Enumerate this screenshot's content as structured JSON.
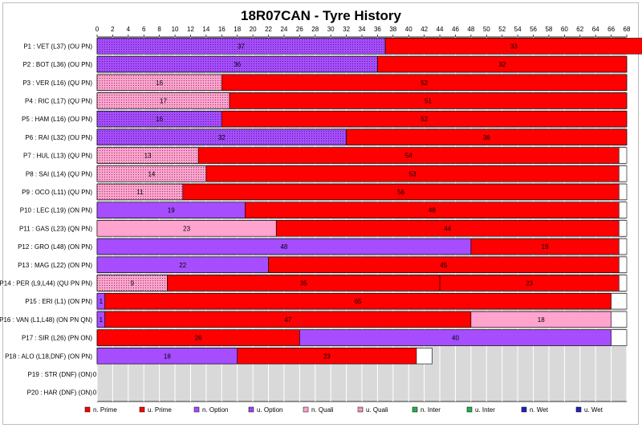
{
  "chart_data": {
    "type": "bar",
    "orientation": "horizontal-stacked",
    "title": "18R07CAN - Tyre History",
    "xlim": [
      0,
      68
    ],
    "xticks": [
      0,
      2,
      4,
      6,
      8,
      10,
      12,
      14,
      16,
      18,
      20,
      22,
      24,
      26,
      28,
      30,
      32,
      34,
      36,
      38,
      40,
      42,
      44,
      46,
      48,
      50,
      52,
      54,
      56,
      58,
      60,
      62,
      64,
      66,
      68
    ],
    "grid": "vertical",
    "legend_position": "bottom",
    "tyre_types": [
      {
        "key": "nP",
        "name": "n. Prime",
        "color": "#ff0000",
        "pattern": "solid"
      },
      {
        "key": "uP",
        "name": "u. Prime",
        "color": "#ff0000",
        "pattern": "solid"
      },
      {
        "key": "nO",
        "name": "n. Option",
        "color": "#a64dff",
        "pattern": "solid"
      },
      {
        "key": "uO",
        "name": "u. Option",
        "color": "#a64dff",
        "pattern": "dots"
      },
      {
        "key": "nQ",
        "name": "n. Quali",
        "color": "#ffa3cf",
        "pattern": "solid"
      },
      {
        "key": "uQ",
        "name": "u. Quali",
        "color": "#ffa3cf",
        "pattern": "dots"
      },
      {
        "key": "nI",
        "name": "n. Inter",
        "color": "#22b14c",
        "pattern": "solid"
      },
      {
        "key": "uI",
        "name": "u. Inter",
        "color": "#22b14c",
        "pattern": "solid"
      },
      {
        "key": "nW",
        "name": "n. Wet",
        "color": "#2222bb",
        "pattern": "solid"
      },
      {
        "key": "uW",
        "name": "u. Wet",
        "color": "#2222bb",
        "pattern": "solid"
      }
    ],
    "drivers": [
      {
        "label": "P1 : VET (L37) (OU PN)",
        "race_laps": 70,
        "stints": [
          {
            "laps": 37,
            "tyre": "uO"
          },
          {
            "laps": 33,
            "tyre": "nP"
          }
        ]
      },
      {
        "label": "P2 : BOT (L36) (OU PN)",
        "race_laps": 70,
        "stints": [
          {
            "laps": 36,
            "tyre": "uO"
          },
          {
            "laps": 32,
            "tyre": "nP"
          }
        ]
      },
      {
        "label": "P3 : VER (L16) (QU PN)",
        "race_laps": 70,
        "stints": [
          {
            "laps": 16,
            "tyre": "uQ"
          },
          {
            "laps": 52,
            "tyre": "nP"
          }
        ]
      },
      {
        "label": "P4 : RIC (L17) (QU PN)",
        "race_laps": 70,
        "stints": [
          {
            "laps": 17,
            "tyre": "uQ"
          },
          {
            "laps": 51,
            "tyre": "nP"
          }
        ]
      },
      {
        "label": "P5 : HAM (L16) (OU PN)",
        "race_laps": 70,
        "stints": [
          {
            "laps": 16,
            "tyre": "uO"
          },
          {
            "laps": 52,
            "tyre": "nP"
          }
        ]
      },
      {
        "label": "P6 : RAI (L32) (OU PN)",
        "race_laps": 70,
        "stints": [
          {
            "laps": 32,
            "tyre": "uO"
          },
          {
            "laps": 36,
            "tyre": "nP"
          }
        ]
      },
      {
        "label": "P7 : HUL (L13) (QU PN)",
        "race_laps": 69,
        "stints": [
          {
            "laps": 13,
            "tyre": "uQ"
          },
          {
            "laps": 54,
            "tyre": "nP"
          }
        ]
      },
      {
        "label": "P8 : SAI (L14) (QU PN)",
        "race_laps": 69,
        "stints": [
          {
            "laps": 14,
            "tyre": "uQ"
          },
          {
            "laps": 53,
            "tyre": "nP"
          }
        ]
      },
      {
        "label": "P9 : OCO (L11) (QU PN)",
        "race_laps": 69,
        "stints": [
          {
            "laps": 11,
            "tyre": "uQ"
          },
          {
            "laps": 56,
            "tyre": "nP"
          }
        ]
      },
      {
        "label": "P10 : LEC (L19) (ON PN)",
        "race_laps": 69,
        "stints": [
          {
            "laps": 19,
            "tyre": "nO"
          },
          {
            "laps": 48,
            "tyre": "nP"
          }
        ]
      },
      {
        "label": "P11 : GAS (L23) (QN PN)",
        "race_laps": 69,
        "stints": [
          {
            "laps": 23,
            "tyre": "nQ"
          },
          {
            "laps": 44,
            "tyre": "nP"
          }
        ]
      },
      {
        "label": "P12 : GRO (L48) (ON PN)",
        "race_laps": 69,
        "stints": [
          {
            "laps": 48,
            "tyre": "nO"
          },
          {
            "laps": 19,
            "tyre": "nP"
          }
        ]
      },
      {
        "label": "P13 : MAG (L22) (ON PN)",
        "race_laps": 69,
        "stints": [
          {
            "laps": 22,
            "tyre": "nO"
          },
          {
            "laps": 45,
            "tyre": "nP"
          }
        ]
      },
      {
        "label": "P14 : PER (L9,L44) (QU PN PN)",
        "race_laps": 69,
        "stints": [
          {
            "laps": 9,
            "tyre": "uQ"
          },
          {
            "laps": 35,
            "tyre": "nP"
          },
          {
            "laps": 23,
            "tyre": "nP"
          }
        ]
      },
      {
        "label": "P15 : ERI (L1) (ON PN)",
        "race_laps": 68,
        "stints": [
          {
            "laps": 1,
            "tyre": "nO"
          },
          {
            "laps": 65,
            "tyre": "nP"
          }
        ]
      },
      {
        "label": "P16 : VAN (L1,L48) (ON PN QN)",
        "race_laps": 68,
        "stints": [
          {
            "laps": 1,
            "tyre": "nO"
          },
          {
            "laps": 47,
            "tyre": "nP"
          },
          {
            "laps": 18,
            "tyre": "nQ"
          }
        ]
      },
      {
        "label": "P17 : SIR (L26) (PN ON)",
        "race_laps": 68,
        "stints": [
          {
            "laps": 26,
            "tyre": "nP"
          },
          {
            "laps": 40,
            "tyre": "nO"
          }
        ]
      },
      {
        "label": "P18 : ALO (L18,DNF) (ON PN)",
        "race_laps": 43,
        "stints": [
          {
            "laps": 18,
            "tyre": "nO"
          },
          {
            "laps": 23,
            "tyre": "nP"
          }
        ]
      },
      {
        "label": "P19 : STR (DNF) (ON)",
        "race_laps": 0,
        "stints": [
          {
            "laps": 0,
            "tyre": "nO"
          }
        ]
      },
      {
        "label": "P20 : HAR (DNF) (ON)",
        "race_laps": 0,
        "stints": [
          {
            "laps": 0,
            "tyre": "nO"
          }
        ]
      }
    ]
  }
}
